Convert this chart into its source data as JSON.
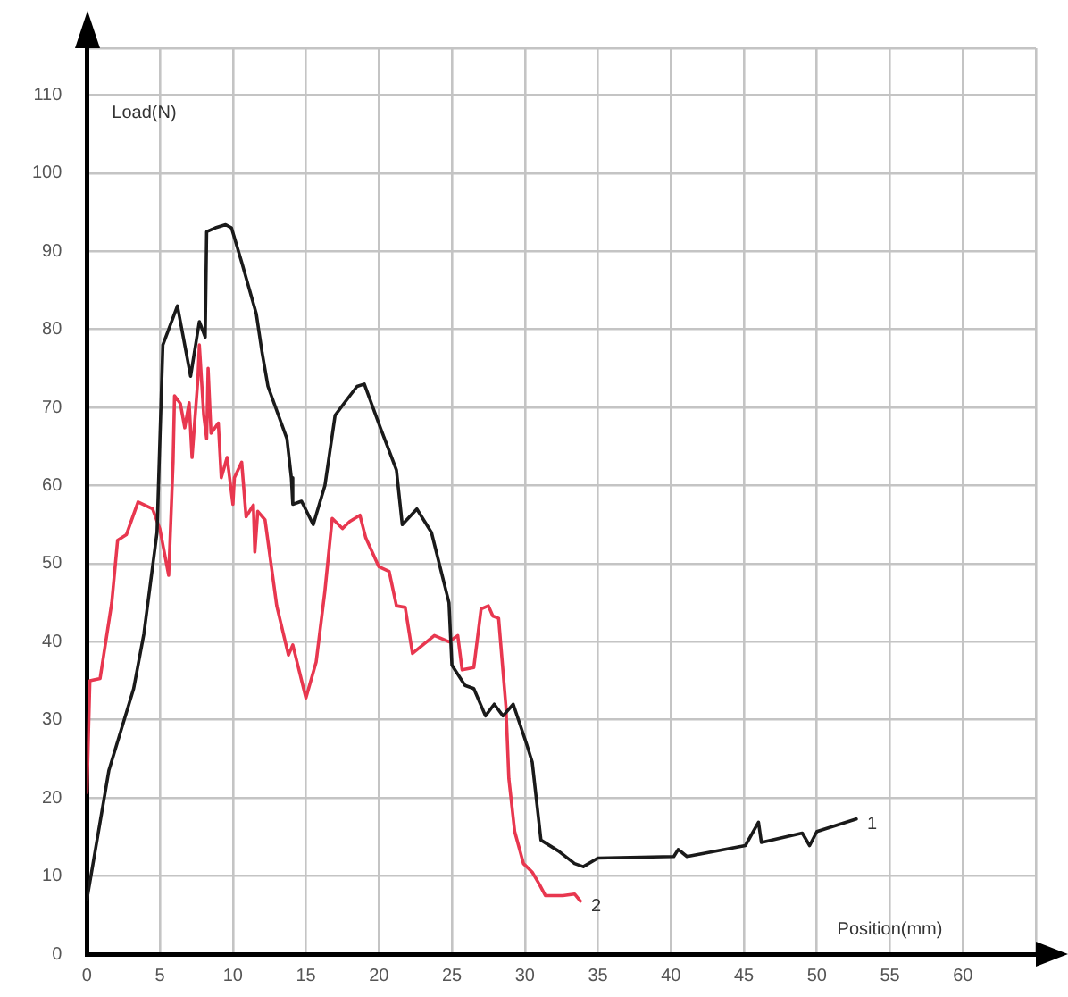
{
  "chart_data": {
    "type": "line",
    "xlabel": "Position(mm)",
    "ylabel": "Load(N)",
    "xlim": [
      0,
      65
    ],
    "xticks": [
      0,
      5,
      10,
      15,
      20,
      25,
      30,
      35,
      40,
      45,
      50,
      55,
      60,
      {
        "value": 65,
        "label": null
      }
    ],
    "ylim": [
      0,
      116
    ],
    "yticks": [
      0,
      10,
      20,
      30,
      40,
      50,
      60,
      70,
      80,
      90,
      100,
      110,
      {
        "value": 116,
        "label": null
      }
    ],
    "grid": true,
    "legend": false,
    "marker": "none",
    "line_style": "solid",
    "series": [
      {
        "name": "1",
        "color": "#1a1a1a",
        "x": [
          0,
          1.5,
          3.2,
          3.9,
          4.8,
          5.2,
          6.2,
          7.1,
          7.7,
          8.1,
          8.2,
          8.8,
          9.5,
          9.9,
          10.6,
          11.6,
          12,
          12.4,
          13.7,
          14,
          14.1,
          14.7,
          15.5,
          16.3,
          17,
          17.6,
          18.5,
          19,
          20.1,
          21.2,
          21.6,
          22.6,
          23.6,
          24.8,
          25,
          25.9,
          26.5,
          27.3,
          27.9,
          28.5,
          29.2,
          30.1,
          30.5,
          31.1,
          32.3,
          33.4,
          34,
          35,
          40.2,
          40.5,
          41.1,
          45.1,
          46,
          46.2,
          49,
          49.5,
          50,
          52.7
        ],
        "values": [
          7,
          23.5,
          34,
          41,
          54,
          78,
          83,
          74,
          81,
          79,
          92.5,
          93,
          93.4,
          93,
          88.6,
          82,
          77,
          72.7,
          66,
          61,
          57.6,
          58,
          55,
          60,
          69,
          70.5,
          72.7,
          73,
          67.4,
          62,
          55,
          57,
          54,
          45,
          37,
          34.4,
          34,
          30.5,
          32,
          30.5,
          32,
          27,
          24.6,
          14.6,
          13.2,
          11.6,
          11.2,
          12.3,
          12.5,
          13.4,
          12.5,
          13.9,
          16.9,
          14.3,
          15.5,
          13.9,
          15.7,
          17.3
        ]
      },
      {
        "name": "2",
        "color": "#e8374f",
        "x": [
          0,
          0.2,
          0.9,
          1.7,
          2.1,
          2.7,
          3.5,
          4.5,
          5,
          5.6,
          5.9,
          6,
          6.4,
          6.7,
          7,
          7.2,
          7.6,
          7.7,
          8,
          8.2,
          8.3,
          8.5,
          9,
          9.2,
          9.6,
          10,
          10.1,
          10.6,
          10.9,
          11.4,
          11.5,
          11.7,
          12.2,
          13,
          13.8,
          14.1,
          15,
          15.7,
          16.3,
          16.8,
          17.5,
          18,
          18.7,
          19.1,
          20,
          20.7,
          21.2,
          21.8,
          22.3,
          23.8,
          24.8,
          25.4,
          25.7,
          26.5,
          27,
          27.5,
          27.8,
          28.2,
          28.7,
          28.9,
          29.3,
          29.9,
          30.5,
          31,
          31.4,
          32.6,
          33.4,
          33.8
        ],
        "values": [
          20.7,
          35,
          35.3,
          45,
          53,
          53.7,
          57.9,
          57,
          54.4,
          48.5,
          63,
          71.5,
          70.5,
          67.4,
          70.6,
          63.6,
          73.6,
          78,
          69,
          66,
          75,
          66.7,
          68,
          61,
          63.6,
          57.6,
          61,
          63,
          56,
          57.5,
          51.5,
          56.7,
          55.6,
          44.6,
          38.3,
          39.6,
          32.8,
          37.4,
          46.5,
          55.8,
          54.5,
          55.4,
          56.2,
          53.3,
          49.6,
          49,
          44.6,
          44.4,
          38.5,
          40.8,
          40,
          40.8,
          36.4,
          36.7,
          44.2,
          44.6,
          43.3,
          43,
          31.7,
          22.5,
          15.7,
          11.6,
          10.5,
          8.9,
          7.5,
          7.5,
          7.7,
          6.8
        ]
      }
    ]
  }
}
